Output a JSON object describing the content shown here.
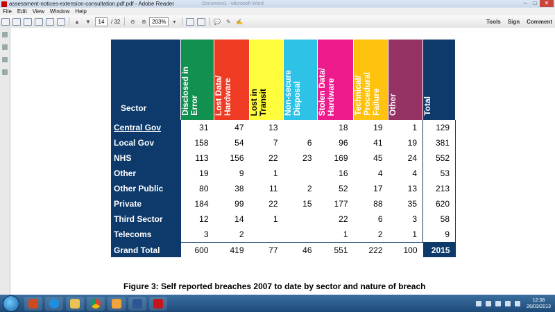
{
  "window": {
    "title": "assessment-notices-extension-consultation.pdf.pdf - Adobe Reader",
    "background_title": "Document1 - Microsoft Word"
  },
  "menu": [
    "File",
    "Edit",
    "View",
    "Window",
    "Help"
  ],
  "toolbar": {
    "page_current": "14",
    "page_total": "/ 32",
    "zoom": "203%",
    "tools_label": "Tools",
    "sign_label": "Sign",
    "comment_label": "Comment"
  },
  "table": {
    "sector_header": "Sector",
    "columns": [
      {
        "label": "Disclosed in\nError",
        "color": "#12904f"
      },
      {
        "label": "Lost Data/\nHardware",
        "color": "#ef3b24"
      },
      {
        "label": "Lost in\nTransit",
        "color": "#fffd3c"
      },
      {
        "label": "Non-secure\nDisposal",
        "color": "#2ec3e6"
      },
      {
        "label": "Stolen Data/\nHardware",
        "color": "#ee1b8c"
      },
      {
        "label": "Technical/\nProcedural\nFailure",
        "color": "#ffc20e"
      },
      {
        "label": "Other",
        "color": "#963264"
      }
    ],
    "total_header": "Total",
    "rows": [
      {
        "sector": "Central Gov",
        "values": [
          "31",
          "47",
          "13",
          "",
          "18",
          "19",
          "1"
        ],
        "total": "129"
      },
      {
        "sector": "Local Gov",
        "values": [
          "158",
          "54",
          "7",
          "6",
          "96",
          "41",
          "19"
        ],
        "total": "381"
      },
      {
        "sector": "NHS",
        "values": [
          "113",
          "156",
          "22",
          "23",
          "169",
          "45",
          "24"
        ],
        "total": "552"
      },
      {
        "sector": "Other",
        "values": [
          "19",
          "9",
          "1",
          "",
          "16",
          "4",
          "4"
        ],
        "total": "53"
      },
      {
        "sector": "Other Public",
        "values": [
          "80",
          "38",
          "11",
          "2",
          "52",
          "17",
          "13"
        ],
        "total": "213"
      },
      {
        "sector": "Private",
        "values": [
          "184",
          "99",
          "22",
          "15",
          "177",
          "88",
          "35"
        ],
        "total": "620"
      },
      {
        "sector": "Third Sector",
        "values": [
          "12",
          "14",
          "1",
          "",
          "22",
          "6",
          "3"
        ],
        "total": "58"
      },
      {
        "sector": "Telecoms",
        "values": [
          "3",
          "2",
          "",
          "",
          "1",
          "2",
          "1"
        ],
        "total": "9"
      }
    ],
    "grand_total": {
      "label": "Grand Total",
      "values": [
        "600",
        "419",
        "77",
        "46",
        "551",
        "222",
        "100"
      ],
      "total": "2015"
    }
  },
  "caption": "Figure 3: Self reported breaches 2007 to date by sector and nature of breach",
  "clock": {
    "time": "12:38",
    "date": "26/03/2013"
  },
  "colors": {
    "header_navy": "#0e3a6b"
  }
}
